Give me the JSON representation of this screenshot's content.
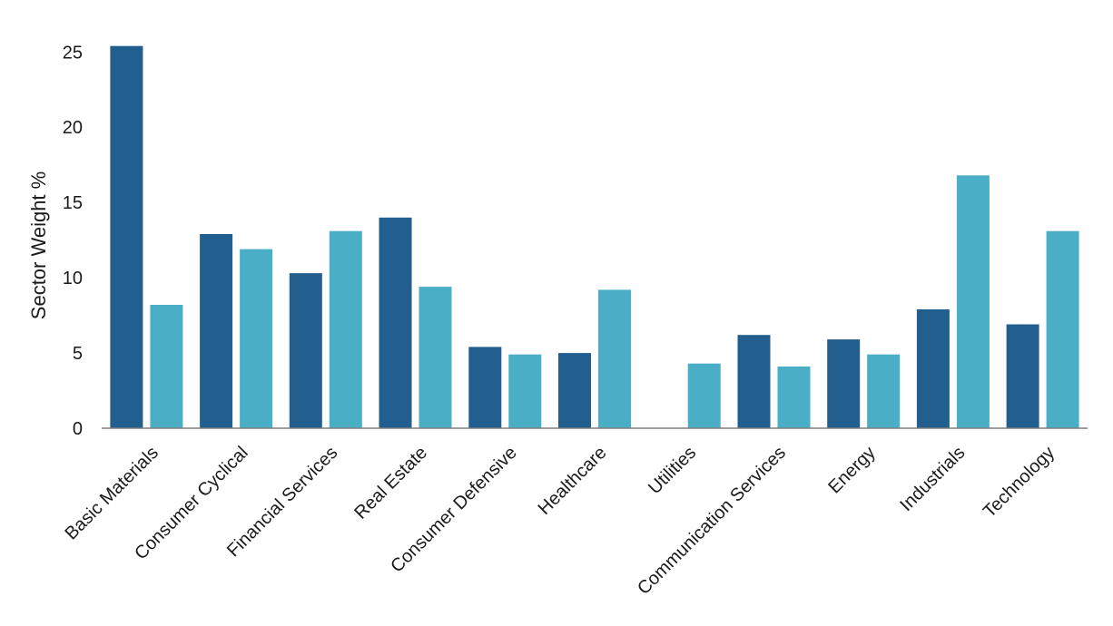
{
  "chart_data": {
    "type": "bar",
    "title": "",
    "xlabel": "",
    "ylabel": "Sector Weight %",
    "ylim": [
      0,
      25.5
    ],
    "yticks": [
      0,
      5,
      10,
      15,
      20,
      25
    ],
    "grid": false,
    "legend": "none",
    "categories": [
      "Basic Materials",
      "Consumer Cyclical",
      "Financial Services",
      "Real Estate",
      "Consumer Defensive",
      "Healthcare",
      "Utilities",
      "Communication Services",
      "Energy",
      "Industrials",
      "Technology"
    ],
    "series": [
      {
        "color": "#225f8f",
        "values": [
          25.4,
          12.9,
          10.3,
          14.0,
          5.4,
          5.0,
          0,
          6.2,
          5.9,
          7.9,
          6.9
        ]
      },
      {
        "color": "#4aaec6",
        "values": [
          8.2,
          11.9,
          13.1,
          9.4,
          4.9,
          9.2,
          4.3,
          4.1,
          4.9,
          16.8,
          13.1
        ]
      }
    ]
  }
}
